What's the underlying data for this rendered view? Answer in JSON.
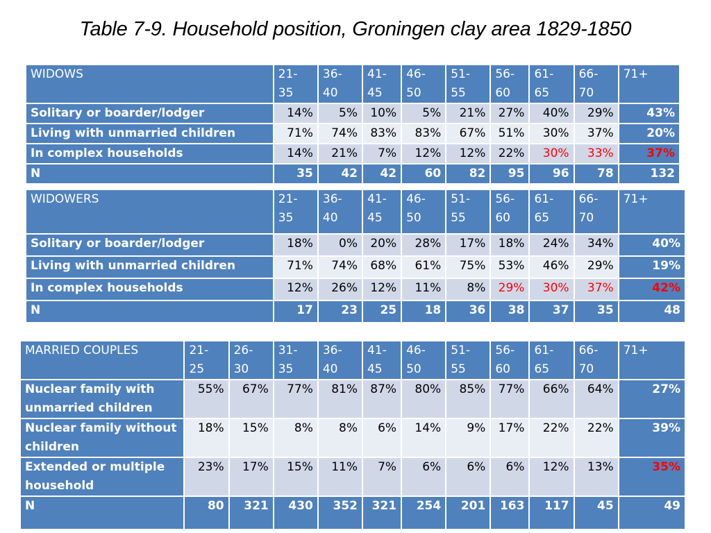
{
  "title": "Table 7-9. Household position, Groningen clay area 1829-1850",
  "colors": {
    "header_blue": "#4f81bd",
    "row_band_1": "#d0d8e8",
    "row_band_2": "#e9edf4",
    "highlight_red": "#ff0000"
  },
  "widows": {
    "label": "WIDOWS",
    "cols": [
      "21-\n35",
      "36-\n40",
      "41-\n45",
      "46-\n50",
      "51-\n55",
      "56-\n60",
      "61-\n65",
      "66-\n70",
      "71+"
    ],
    "rows": [
      {
        "label": "Solitary or boarder/lodger",
        "cells": [
          "14%",
          "5%",
          "10%",
          "5%",
          "21%",
          "27%",
          "40%",
          "29%",
          "43%"
        ]
      },
      {
        "label": "Living with unmarried children",
        "cells": [
          "71%",
          "74%",
          "83%",
          "83%",
          "67%",
          "51%",
          "30%",
          "37%",
          "20%"
        ]
      },
      {
        "label": "In complex households",
        "cells": [
          "14%",
          "21%",
          "7%",
          "12%",
          "12%",
          "22%",
          "30%",
          "33%",
          "37%"
        ]
      }
    ],
    "n_label": "N",
    "n": [
      "35",
      "42",
      "42",
      "60",
      "82",
      "95",
      "96",
      "78",
      "132"
    ]
  },
  "widowers": {
    "label": "WIDOWERS",
    "cols": [
      "21-\n35",
      "36-\n40",
      "41-\n45",
      "46-\n50",
      "51-\n55",
      "56-\n60",
      "61-\n65",
      "66-\n70",
      "71+"
    ],
    "rows": [
      {
        "label": "Solitary or boarder/lodger",
        "cells": [
          "18%",
          "0%",
          "20%",
          "28%",
          "17%",
          "18%",
          "24%",
          "34%",
          "40%"
        ]
      },
      {
        "label": "Living with unmarried children",
        "cells": [
          "71%",
          "74%",
          "68%",
          "61%",
          "75%",
          "53%",
          "46%",
          "29%",
          "19%"
        ]
      },
      {
        "label": "In complex households",
        "cells": [
          "12%",
          "26%",
          "12%",
          "11%",
          "8%",
          "29%",
          "30%",
          "37%",
          "42%"
        ]
      }
    ],
    "n_label": "N",
    "n": [
      "17",
      "23",
      "25",
      "18",
      "36",
      "38",
      "37",
      "35",
      "48"
    ]
  },
  "married": {
    "label": "MARRIED COUPLES",
    "cols": [
      "21-\n25",
      "26-\n30",
      "31-\n35",
      "36-\n40",
      "41-\n45",
      "46-\n50",
      "51-\n55",
      "56-\n60",
      "61-\n65",
      "66-\n70",
      "71+"
    ],
    "rows": [
      {
        "label": "Nuclear family with unmarried children",
        "cells": [
          "55%",
          "67%",
          "77%",
          "81%",
          "87%",
          "80%",
          "85%",
          "77%",
          "66%",
          "64%",
          "27%"
        ]
      },
      {
        "label": "Nuclear family without children",
        "cells": [
          "18%",
          "15%",
          "8%",
          "8%",
          "6%",
          "14%",
          "9%",
          "17%",
          "22%",
          "22%",
          "39%"
        ]
      },
      {
        "label": "Extended or multiple household",
        "cells": [
          "23%",
          "17%",
          "15%",
          "11%",
          "7%",
          "6%",
          "6%",
          "6%",
          "12%",
          "13%",
          "35%"
        ]
      }
    ],
    "n_label": "N",
    "n": [
      "80",
      "321",
      "430",
      "352",
      "321",
      "254",
      "201",
      "163",
      "117",
      "45",
      "49"
    ]
  }
}
